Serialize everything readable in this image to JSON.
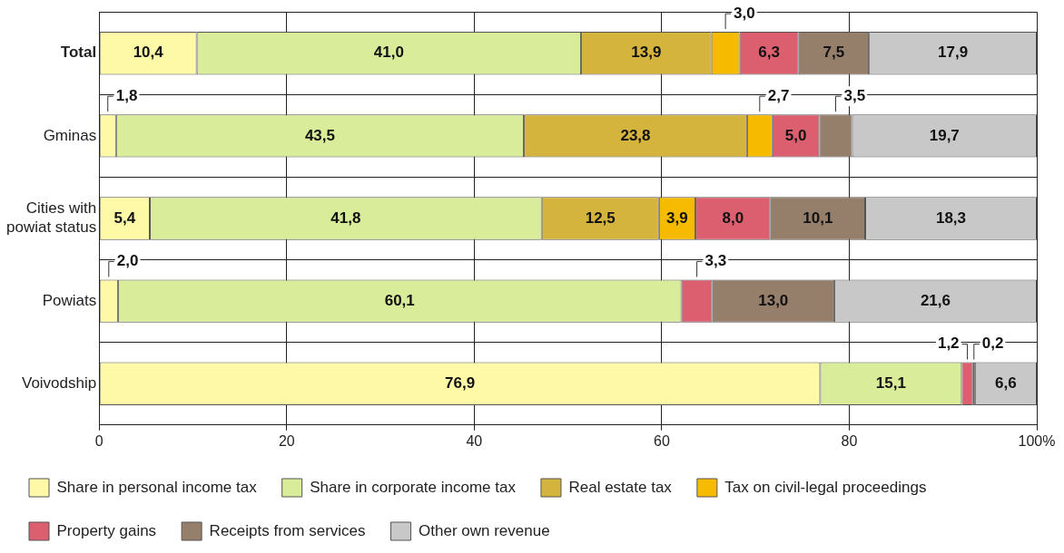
{
  "chart_data": {
    "type": "bar",
    "orientation": "horizontal",
    "stacked": true,
    "categories": [
      "Total",
      "Gminas",
      "Cities with powiat status",
      "Powiats",
      "Voivodship"
    ],
    "series": [
      {
        "name": "Share in personal income tax",
        "color": "#fef9a6",
        "values": [
          10.4,
          1.8,
          5.4,
          2.0,
          76.9
        ],
        "value_labels": [
          "10,4",
          "1,8",
          "5,4",
          "2,0",
          "76,9"
        ]
      },
      {
        "name": "Share in corporate income tax",
        "color": "#d9ec9a",
        "values": [
          41.0,
          43.5,
          41.8,
          60.1,
          15.1
        ],
        "value_labels": [
          "41,0",
          "43,5",
          "41,8",
          "60,1",
          "15,1"
        ]
      },
      {
        "name": "Real estate tax",
        "color": "#d4b43c",
        "values": [
          13.9,
          23.8,
          12.5,
          null,
          null
        ],
        "value_labels": [
          "13,9",
          "23,8",
          "12,5",
          null,
          null
        ]
      },
      {
        "name": "Tax on civil-legal proceedings",
        "color": "#f6bb00",
        "values": [
          3.0,
          2.7,
          3.9,
          null,
          null
        ],
        "value_labels": [
          "3,0",
          "2,7",
          "3,9",
          null,
          null
        ]
      },
      {
        "name": "Property gains",
        "color": "#dc5f70",
        "values": [
          6.3,
          5.0,
          8.0,
          3.3,
          1.2
        ],
        "value_labels": [
          "6,3",
          "5,0",
          "8,0",
          "3,3",
          "1,2"
        ]
      },
      {
        "name": "Receipts from services",
        "color": "#957e6a",
        "values": [
          7.5,
          3.5,
          10.1,
          13.0,
          0.2
        ],
        "value_labels": [
          "7,5",
          "3,5",
          "10,1",
          "13,0",
          "0,2"
        ]
      },
      {
        "name": "Other own revenue",
        "color": "#c8c8c8",
        "values": [
          17.9,
          19.7,
          18.3,
          21.6,
          6.6
        ],
        "value_labels": [
          "17,9",
          "19,7",
          "18,3",
          "21,6",
          "6,6"
        ]
      }
    ],
    "xlim": [
      0,
      100
    ],
    "xticks": [
      0,
      20,
      40,
      60,
      80,
      {
        "value": 100,
        "label": "100%"
      }
    ],
    "grid": true,
    "legend": "bottom"
  }
}
